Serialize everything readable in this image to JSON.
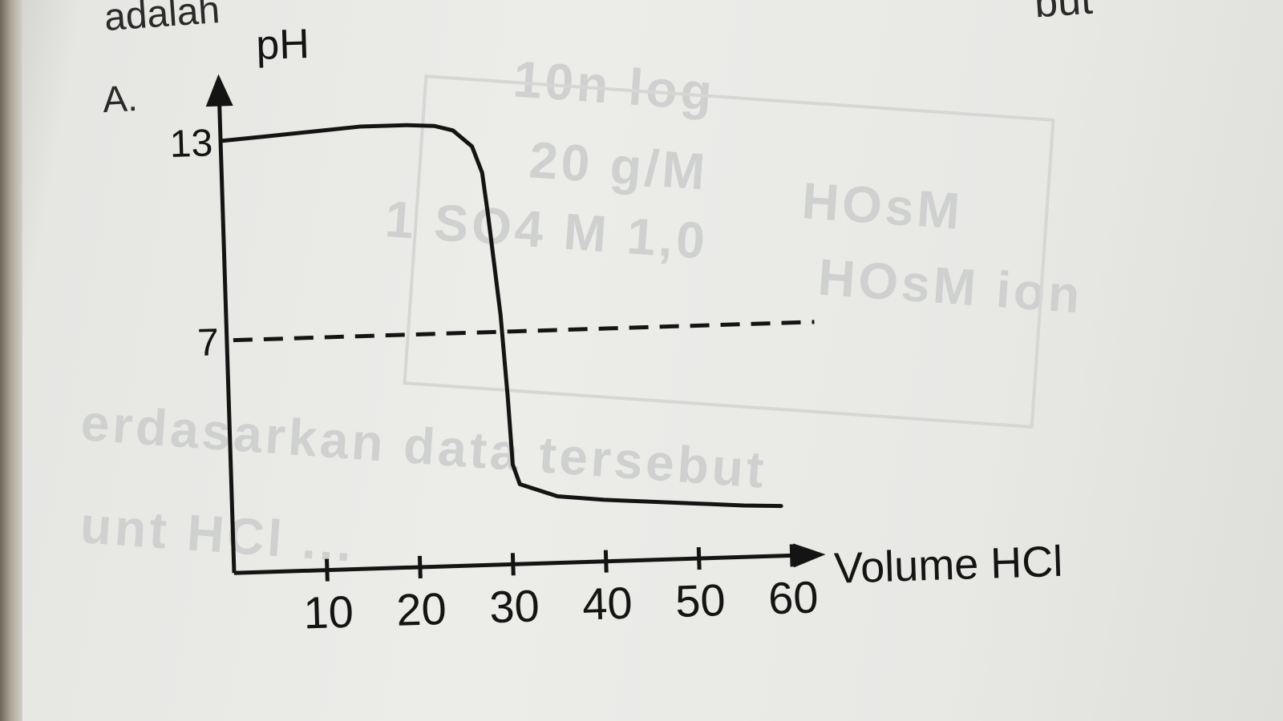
{
  "page": {
    "frag_top_left": "adalah",
    "frag_top_right": "but",
    "option_label": "A."
  },
  "chart_data": {
    "type": "line",
    "ylabel": "pH",
    "xlabel": "Volume HCl",
    "x_ticks": [
      10,
      20,
      30,
      40,
      50,
      60
    ],
    "y_ticks": [
      13,
      7
    ],
    "xlim": [
      0,
      65
    ],
    "ylim": [
      0,
      15
    ],
    "series": [
      {
        "x": [
          0,
          5,
          10,
          15,
          20,
          23,
          25,
          27,
          28,
          28.5,
          29,
          29.5,
          30,
          30.3,
          31,
          35,
          40,
          45,
          50,
          55,
          59
        ],
        "y": [
          13,
          13.1,
          13.2,
          13.3,
          13.3,
          13.25,
          13.1,
          12.6,
          11.8,
          10.5,
          9,
          7.5,
          5,
          3,
          2.4,
          2.0,
          1.85,
          1.75,
          1.65,
          1.55,
          1.5
        ]
      }
    ],
    "reference_lines": [
      {
        "axis": "y",
        "value": 7,
        "style": "dashed"
      }
    ],
    "colors": {
      "ink": "#141414",
      "paper": "#ecece9"
    }
  }
}
